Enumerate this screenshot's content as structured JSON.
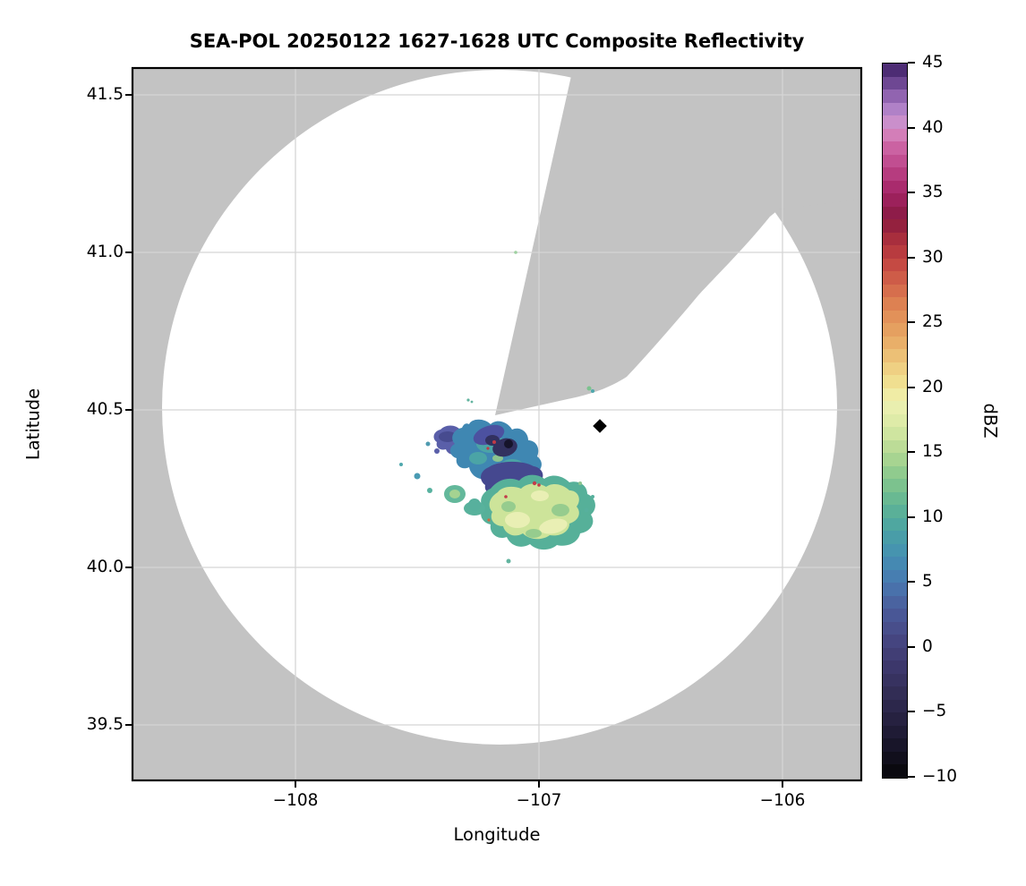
{
  "title": "SEA-POL 20250122 1627-1628 UTC Composite Reflectivity",
  "axes": {
    "xlabel": "Longitude",
    "ylabel": "Latitude",
    "x_ticks": [
      "−108",
      "−107",
      "−106"
    ],
    "y_ticks": [
      "41.5",
      "41.0",
      "40.5",
      "40.0",
      "39.5"
    ]
  },
  "colorbar": {
    "label": "dBZ",
    "vmin": -10,
    "vmax": 45,
    "ticks": [
      "45",
      "40",
      "35",
      "30",
      "25",
      "20",
      "15",
      "10",
      "5",
      "0",
      "−5",
      "−10"
    ],
    "tick_values": [
      45,
      40,
      35,
      30,
      25,
      20,
      15,
      10,
      5,
      0,
      -5,
      -10
    ],
    "step_dbz": 1,
    "anchor_stops": [
      [
        -10,
        "#060608"
      ],
      [
        -7,
        "#1c1830"
      ],
      [
        -4,
        "#2f2a50"
      ],
      [
        -1,
        "#3f3a70"
      ],
      [
        1,
        "#474985"
      ],
      [
        3,
        "#4a5c9b"
      ],
      [
        5,
        "#4878b0"
      ],
      [
        7,
        "#448fb2"
      ],
      [
        9,
        "#4aa2a4"
      ],
      [
        11,
        "#5fb494"
      ],
      [
        13,
        "#85c68c"
      ],
      [
        15,
        "#b2d893"
      ],
      [
        17,
        "#d8e9a4"
      ],
      [
        19,
        "#eff1b2"
      ],
      [
        20,
        "#f1e697"
      ],
      [
        22,
        "#eec87c"
      ],
      [
        24,
        "#e7a763"
      ],
      [
        26,
        "#e08a55"
      ],
      [
        28,
        "#d3654a"
      ],
      [
        30,
        "#c04140"
      ],
      [
        32,
        "#a0283c"
      ],
      [
        33,
        "#871a40"
      ],
      [
        35,
        "#a32364"
      ],
      [
        37,
        "#bc4488"
      ],
      [
        39,
        "#d06cab"
      ],
      [
        40,
        "#d68fc5"
      ],
      [
        41,
        "#bd8ed0"
      ],
      [
        42,
        "#a273bd"
      ],
      [
        43,
        "#7f55a2"
      ],
      [
        44,
        "#5d3884"
      ],
      [
        45,
        "#3c1f63"
      ]
    ]
  },
  "colors": {
    "background_mask": "#c3c3c3",
    "scan_area": "#ffffff",
    "gridline": "#d5d5d5",
    "frame": "#000000",
    "marker": "#000000"
  },
  "chart_data": {
    "type": "heatmap",
    "subtype": "radar-ppi-composite-reflectivity",
    "title": "SEA-POL 20250122 1627-1628 UTC Composite Reflectivity",
    "xlabel": "Longitude",
    "ylabel": "Latitude",
    "xlim": [
      -108.67,
      -105.68
    ],
    "ylim": [
      39.32,
      41.59
    ],
    "x_ticks": [
      -108,
      -107,
      -106
    ],
    "y_ticks": [
      41.5,
      41.0,
      40.5,
      40.0,
      39.5
    ],
    "grid": true,
    "colorbar_label": "dBZ",
    "colorbar_range": [
      -10,
      45
    ],
    "colormap": "ChaseSpectral-like (black/navy/indigo/blue/teal/green/yellow/orange/red/maroon/magenta/pink/purple)",
    "radar": {
      "center_lon": -107.18,
      "center_lat": 40.48,
      "max_range_ring_radius_deg_lat": 1.07,
      "scan_area_fill": "white",
      "outside_mask_fill": "gray",
      "blocked_sector_azimuth_deg": [
        14,
        55
      ]
    },
    "marker_point": {
      "lon": -106.75,
      "lat": 40.45,
      "shape": "diamond",
      "color": "black"
    },
    "echo_regions": [
      {
        "name": "north-cluster",
        "lon_range": [
          -107.38,
          -107.02
        ],
        "lat_range": [
          40.21,
          40.48
        ],
        "dbz_range": [
          -6,
          10
        ],
        "description": "mottled blue/teal with indigo-navy core, near-black minimum and small ~30 dBZ specks"
      },
      {
        "name": "indigo-patch",
        "lon_range": [
          -107.22,
          -107.0
        ],
        "lat_range": [
          40.22,
          40.33
        ],
        "dbz_range": [
          -2,
          4
        ],
        "description": "deep blue-purple patch"
      },
      {
        "name": "south-blob",
        "lon_range": [
          -107.25,
          -106.76
        ],
        "lat_range": [
          40.05,
          40.29
        ],
        "dbz_range": [
          8,
          20
        ],
        "description": "large yellow-green area with green/teal mottling and isolated ~30 dBZ specks"
      },
      {
        "name": "small-west-islands",
        "lon_range": [
          -107.45,
          -107.28
        ],
        "lat_range": [
          40.15,
          40.28
        ],
        "dbz_range": [
          5,
          14
        ],
        "description": "small teal-green islands"
      },
      {
        "name": "tiny-ne-specks",
        "lon_range": [
          -106.8,
          -106.77
        ],
        "lat_range": [
          40.55,
          40.57
        ],
        "dbz_range": [
          5,
          12
        ],
        "description": "two tiny specks northeast of echoes"
      }
    ]
  }
}
